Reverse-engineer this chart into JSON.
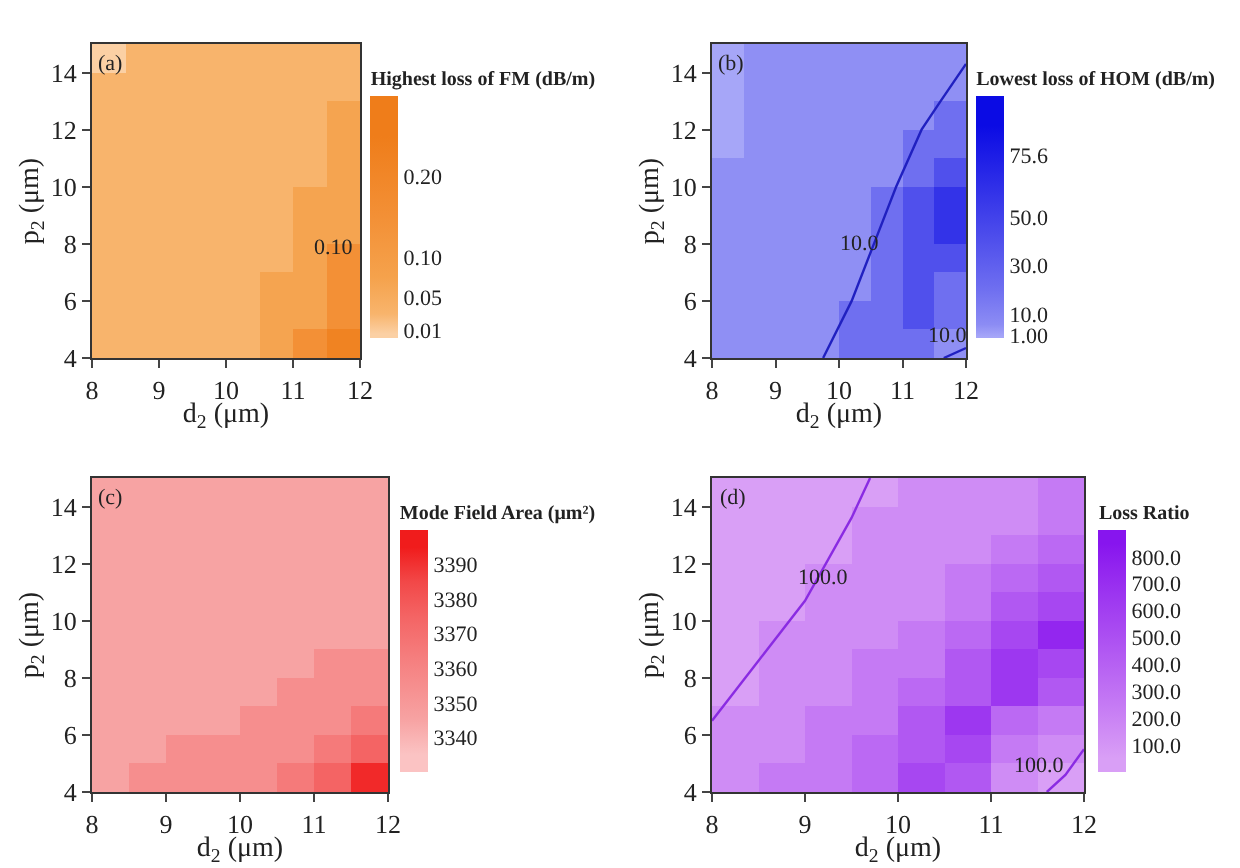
{
  "chart_data": [
    {
      "type": "heatmap",
      "clabel": "Highest loss of FM (dB/m)",
      "xlabel": "d$_{2}$ (μm)",
      "ylabel": "p$_{2}$ (μm)",
      "annotations": [
        "(a)",
        "0.10"
      ],
      "x": [
        8.25,
        8.75,
        9.25,
        9.75,
        10.25,
        10.75,
        11.25,
        11.75
      ],
      "y": [
        14.5,
        13.5,
        12.5,
        11.5,
        10.5,
        9.5,
        8.5,
        7.5,
        6.5,
        5.5,
        4.5
      ],
      "cells": [
        [
          0.005,
          0.03,
          0.03,
          0.03,
          0.03,
          0.03,
          0.03,
          0.03
        ],
        [
          0.03,
          0.03,
          0.03,
          0.03,
          0.03,
          0.03,
          0.03,
          0.03
        ],
        [
          0.03,
          0.03,
          0.03,
          0.03,
          0.03,
          0.03,
          0.03,
          0.07
        ],
        [
          0.03,
          0.03,
          0.03,
          0.03,
          0.03,
          0.03,
          0.03,
          0.07
        ],
        [
          0.03,
          0.03,
          0.03,
          0.03,
          0.03,
          0.03,
          0.03,
          0.07
        ],
        [
          0.03,
          0.03,
          0.03,
          0.03,
          0.03,
          0.03,
          0.07,
          0.07
        ],
        [
          0.03,
          0.03,
          0.03,
          0.03,
          0.03,
          0.03,
          0.07,
          0.07
        ],
        [
          0.03,
          0.03,
          0.03,
          0.03,
          0.03,
          0.03,
          0.07,
          0.15
        ],
        [
          0.03,
          0.03,
          0.03,
          0.03,
          0.03,
          0.07,
          0.07,
          0.15
        ],
        [
          0.03,
          0.03,
          0.03,
          0.03,
          0.03,
          0.07,
          0.07,
          0.15
        ],
        [
          0.03,
          0.03,
          0.03,
          0.03,
          0.03,
          0.07,
          0.15,
          0.22
        ]
      ],
      "clim": [
        0,
        0.3
      ],
      "cticks": [
        0.01,
        0.05,
        {
          "value": 0.1,
          "label": "0.10"
        },
        {
          "value": 0.2,
          "label": "0.20"
        }
      ],
      "colors": [
        "#fbd0a4",
        "#f8b46c",
        "#f5a24c",
        "#f39036",
        "#ef7d1a"
      ],
      "xlim": [
        8,
        12
      ],
      "ylim": [
        4,
        15
      ],
      "xticks": [
        8,
        9,
        10,
        11,
        12
      ],
      "yticks": [
        4,
        6,
        8,
        10,
        12,
        14
      ]
    },
    {
      "type": "heatmap",
      "clabel": "Lowest loss of HOM (dB/m)",
      "xlabel": "d$_{2}$ (μm)",
      "ylabel": "p$_{2}$ (μm)",
      "annotations": [
        "(b)",
        "10.0",
        "10.0"
      ],
      "x": [
        8.25,
        8.75,
        9.25,
        9.75,
        10.25,
        10.75,
        11.25,
        11.75
      ],
      "y": [
        14.5,
        13.5,
        12.5,
        11.5,
        10.5,
        9.5,
        8.5,
        7.5,
        6.5,
        5.5,
        4.5
      ],
      "cells": [
        [
          0.5,
          5,
          5,
          5,
          5,
          5,
          5,
          5
        ],
        [
          0.5,
          5,
          5,
          5,
          5,
          5,
          5,
          5
        ],
        [
          0.5,
          5,
          5,
          5,
          5,
          5,
          5,
          20
        ],
        [
          0.5,
          5,
          5,
          5,
          5,
          5,
          20,
          20
        ],
        [
          5,
          5,
          5,
          5,
          5,
          5,
          20,
          40
        ],
        [
          5,
          5,
          5,
          5,
          5,
          20,
          40,
          60
        ],
        [
          5,
          5,
          5,
          5,
          5,
          20,
          40,
          60
        ],
        [
          5,
          5,
          5,
          5,
          5,
          20,
          40,
          40
        ],
        [
          5,
          5,
          5,
          5,
          5,
          20,
          40,
          20
        ],
        [
          5,
          5,
          5,
          5,
          20,
          20,
          40,
          20
        ],
        [
          5,
          5,
          5,
          5,
          20,
          20,
          20,
          5
        ]
      ],
      "series": [
        {
          "type": "line",
          "color": "#2020c0",
          "x": [
            9.75,
            10.2,
            10.55,
            10.9,
            11.3,
            11.6,
            12
          ],
          "values": [
            4,
            6,
            8,
            10,
            12,
            13,
            14.3
          ]
        },
        {
          "type": "line",
          "color": "#2020c0",
          "x": [
            11.65,
            12
          ],
          "values": [
            4,
            4.35
          ]
        }
      ],
      "clim": [
        0,
        100
      ],
      "cticks": [
        {
          "value": 1,
          "label": "1.00"
        },
        {
          "value": 10,
          "label": "10.0"
        },
        {
          "value": 30,
          "label": "30.0"
        },
        {
          "value": 50,
          "label": "50.0"
        },
        75.6
      ],
      "colors": [
        "#a6a6f8",
        "#8c8cf4",
        "#6f6ff0",
        "#5050ec",
        "#2f2fe8",
        "#0b0be4"
      ],
      "xlim": [
        8,
        12
      ],
      "ylim": [
        4,
        15
      ],
      "xticks": [
        8,
        9,
        10,
        11,
        12
      ],
      "yticks": [
        4,
        6,
        8,
        10,
        12,
        14
      ]
    },
    {
      "type": "heatmap",
      "clabel": "Mode Field Area (μm²)",
      "xlabel": "d$_{2}$ (μm)",
      "ylabel": "p$_{2}$ (μm)",
      "annotations": [
        "(c)"
      ],
      "x": [
        8.25,
        8.75,
        9.25,
        9.75,
        10.25,
        10.75,
        11.25,
        11.75
      ],
      "y": [
        14.5,
        13.5,
        12.5,
        11.5,
        10.5,
        9.5,
        8.5,
        7.5,
        6.5,
        5.5,
        4.5
      ],
      "cells": [
        [
          3345,
          3345,
          3345,
          3345,
          3345,
          3345,
          3345,
          3345
        ],
        [
          3345,
          3345,
          3345,
          3345,
          3345,
          3345,
          3345,
          3345
        ],
        [
          3345,
          3345,
          3345,
          3345,
          3345,
          3345,
          3345,
          3345
        ],
        [
          3345,
          3345,
          3345,
          3345,
          3345,
          3345,
          3345,
          3345
        ],
        [
          3345,
          3345,
          3345,
          3345,
          3345,
          3345,
          3345,
          3345
        ],
        [
          3345,
          3345,
          3345,
          3345,
          3345,
          3345,
          3345,
          3345
        ],
        [
          3345,
          3345,
          3345,
          3345,
          3345,
          3345,
          3355,
          3355
        ],
        [
          3345,
          3345,
          3345,
          3345,
          3345,
          3355,
          3355,
          3355
        ],
        [
          3345,
          3345,
          3345,
          3345,
          3355,
          3355,
          3355,
          3365
        ],
        [
          3345,
          3345,
          3355,
          3355,
          3355,
          3355,
          3365,
          3375
        ],
        [
          3345,
          3355,
          3355,
          3355,
          3355,
          3365,
          3375,
          3392
        ]
      ],
      "clim": [
        3330,
        3400
      ],
      "cticks": [
        3340,
        3350,
        3360,
        3370,
        3380,
        3390
      ],
      "colors": [
        "#fbc3c3",
        "#f7a3a3",
        "#f68e8e",
        "#f57a7a",
        "#f46464",
        "#f24848",
        "#f01c1c"
      ],
      "xlim": [
        8,
        12
      ],
      "ylim": [
        4,
        15
      ],
      "xticks": [
        8,
        9,
        10,
        11,
        12
      ],
      "yticks": [
        4,
        6,
        8,
        10,
        12,
        14
      ]
    },
    {
      "type": "heatmap",
      "clabel": "Loss Ratio",
      "xlabel": "d$_{2}$ (μm)",
      "ylabel": "p$_{2}$ (μm)",
      "annotations": [
        "(d)",
        "100.0",
        "100.0"
      ],
      "x": [
        8.25,
        8.75,
        9.25,
        9.75,
        10.25,
        10.75,
        11.25,
        11.75
      ],
      "y": [
        14.5,
        13.5,
        12.5,
        11.5,
        10.5,
        9.5,
        8.5,
        7.5,
        6.5,
        5.5,
        4.5
      ],
      "cells": [
        [
          50,
          50,
          50,
          50,
          150,
          150,
          150,
          250
        ],
        [
          50,
          50,
          50,
          150,
          150,
          150,
          150,
          250
        ],
        [
          50,
          50,
          50,
          150,
          150,
          150,
          250,
          350
        ],
        [
          50,
          50,
          150,
          150,
          150,
          250,
          350,
          450
        ],
        [
          50,
          50,
          150,
          150,
          150,
          250,
          450,
          550
        ],
        [
          50,
          150,
          150,
          150,
          250,
          350,
          550,
          750
        ],
        [
          50,
          150,
          150,
          250,
          250,
          450,
          650,
          550
        ],
        [
          50,
          150,
          150,
          250,
          350,
          450,
          650,
          450
        ],
        [
          150,
          150,
          250,
          250,
          450,
          650,
          350,
          250
        ],
        [
          150,
          150,
          250,
          350,
          450,
          550,
          250,
          150
        ],
        [
          150,
          250,
          250,
          350,
          550,
          450,
          150,
          50
        ]
      ],
      "series": [
        {
          "type": "line",
          "color": "#8a2be2",
          "x": [
            8,
            8.5,
            9,
            9.5,
            9.7
          ],
          "values": [
            6.5,
            8.6,
            10.7,
            13.6,
            15
          ]
        },
        {
          "type": "line",
          "color": "#8a2be2",
          "x": [
            11.6,
            11.8,
            12
          ],
          "values": [
            4,
            4.6,
            5.5
          ]
        }
      ],
      "clim": [
        0,
        900
      ],
      "cticks": [
        {
          "value": 100,
          "label": "100.0"
        },
        {
          "value": 200,
          "label": "200.0"
        },
        {
          "value": 300,
          "label": "300.0"
        },
        {
          "value": 400,
          "label": "400.0"
        },
        {
          "value": 500,
          "label": "500.0"
        },
        {
          "value": 600,
          "label": "600.0"
        },
        {
          "value": 700,
          "label": "700.0"
        },
        {
          "value": 800,
          "label": "800.0"
        }
      ],
      "colors": [
        "#d99ff6",
        "#cf8cf5",
        "#c57af4",
        "#bb69f3",
        "#b158f2",
        "#a747f1",
        "#9d37f0",
        "#9326ef",
        "#8715ee"
      ],
      "xlim": [
        8,
        12
      ],
      "ylim": [
        4,
        15
      ],
      "xticks": [
        8,
        9,
        10,
        11,
        12
      ],
      "yticks": [
        4,
        6,
        8,
        10,
        12,
        14
      ]
    }
  ]
}
